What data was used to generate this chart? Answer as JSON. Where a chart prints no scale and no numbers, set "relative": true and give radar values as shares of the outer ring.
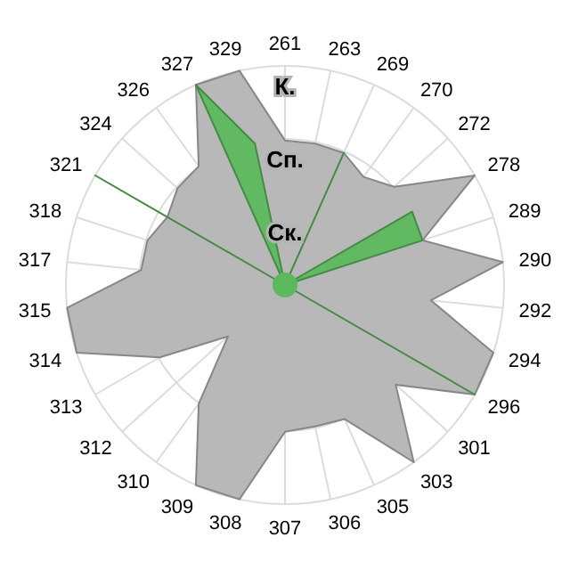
{
  "chart_data": {
    "type": "radar",
    "relative": true,
    "grid": true,
    "marker": "none",
    "categories": [
      "261",
      "263",
      "269",
      "270",
      "272",
      "278",
      "289",
      "290",
      "292",
      "294",
      "296",
      "301",
      "303",
      "305",
      "306",
      "307",
      "308",
      "309",
      "310",
      "312",
      "313",
      "314",
      "315",
      "317",
      "318",
      "321",
      "324",
      "326",
      "327",
      "329"
    ],
    "annotations": [
      "Ск.",
      "Сп.",
      "К."
    ],
    "series": [
      {
        "color": "#b4b4b4",
        "values": [
          0.66,
          0.66,
          0.66,
          0.61,
          0.67,
          1,
          0.66,
          1,
          0.67,
          1,
          1,
          0.68,
          1,
          0.67,
          0.66,
          0.67,
          1,
          1,
          0.67,
          0.35,
          0.66,
          1,
          1,
          0.66,
          0.66,
          0.62,
          0.66,
          0.67,
          1,
          1
        ]
      },
      {
        "color": "#5cb85c",
        "values": [
          0,
          0,
          0.66,
          0,
          0,
          0.67,
          0.66,
          0,
          0,
          0,
          1,
          0,
          0,
          0,
          0,
          0,
          0,
          0,
          0,
          0,
          0,
          0,
          0,
          0,
          0,
          1,
          0,
          0,
          1,
          0.66
        ]
      }
    ]
  }
}
